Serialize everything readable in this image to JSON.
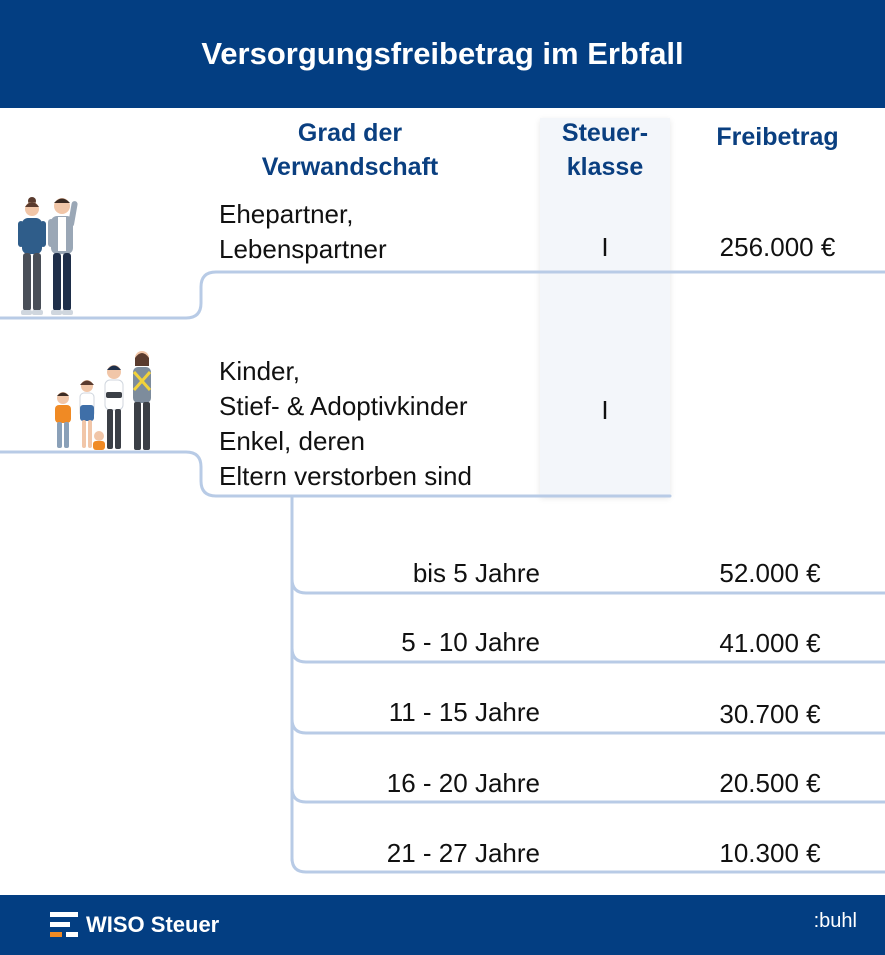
{
  "title": "Versorgungsfreibetrag im Erbfall",
  "columns": {
    "relation": [
      "Grad der",
      "Verwandschaft"
    ],
    "tax_class": [
      "Steuer-",
      "klasse"
    ],
    "allowance": "Freibetrag"
  },
  "groups": [
    {
      "lines": [
        "Ehepartner,",
        "Lebenspartner"
      ],
      "tax_class": "I",
      "allowance": "256.000 €"
    },
    {
      "lines": [
        "Kinder,",
        "Stief- & Adoptivkinder",
        "Enkel, deren",
        "Eltern verstorben sind"
      ],
      "tax_class": "I",
      "allowance": ""
    }
  ],
  "age_rows": [
    {
      "age": "bis 5 Jahre",
      "allowance": "52.000 €"
    },
    {
      "age": "5 - 10 Jahre",
      "allowance": "41.000 €"
    },
    {
      "age": "11 - 15 Jahre",
      "allowance": "30.700 €"
    },
    {
      "age": "16 - 20 Jahre",
      "allowance": "20.500 €"
    },
    {
      "age": "21 - 27 Jahre",
      "allowance": "10.300 €"
    }
  ],
  "footer": {
    "brand": "WISO Steuer",
    "company": ":buhl"
  },
  "colors": {
    "primary": "#033e82",
    "line": "#b8cbe6"
  }
}
